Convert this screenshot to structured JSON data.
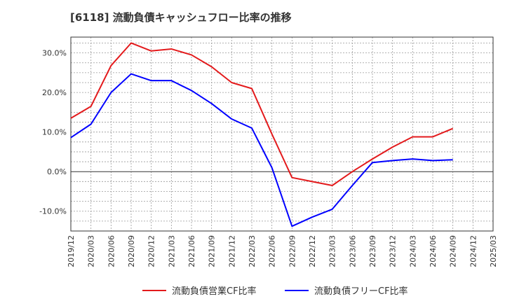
{
  "chart_data": {
    "type": "line",
    "title": "[6118]  流動負債キャッシュフロー比率の推移",
    "xlabel": "",
    "ylabel": "",
    "ylim": [
      -15,
      34
    ],
    "yticks": [
      30,
      20,
      10,
      0,
      -10
    ],
    "ytick_labels": [
      "30.0%",
      "20.0%",
      "10.0%",
      "0.0%",
      "-10.0%"
    ],
    "x": [
      "2019/12",
      "2020/03",
      "2020/06",
      "2020/09",
      "2020/12",
      "2021/03",
      "2021/06",
      "2021/09",
      "2021/12",
      "2022/03",
      "2022/06",
      "2022/09",
      "2022/12",
      "2023/03",
      "2023/06",
      "2023/09",
      "2023/12",
      "2024/03",
      "2024/06",
      "2024/09",
      "2024/12",
      "2025/03"
    ],
    "grid": true,
    "legend_position": "bottom",
    "series": [
      {
        "name": "流動負債営業CF比率",
        "color": "#e31a1c",
        "values": [
          13.5,
          16.5,
          26.8,
          32.5,
          30.5,
          31.0,
          29.5,
          26.5,
          22.5,
          21.0,
          9.5,
          -1.5,
          -2.5,
          -3.5,
          0.0,
          3.2,
          6.2,
          8.8,
          8.8,
          10.9,
          null,
          null
        ]
      },
      {
        "name": "流動負債フリーCF比率",
        "color": "#0000ff",
        "values": [
          8.6,
          12.0,
          20.0,
          24.7,
          23.0,
          23.0,
          20.5,
          17.2,
          13.3,
          11.0,
          1.0,
          -13.8,
          -11.5,
          -9.5,
          -3.5,
          2.3,
          2.8,
          3.2,
          2.8,
          3.0,
          null,
          null
        ]
      }
    ]
  }
}
